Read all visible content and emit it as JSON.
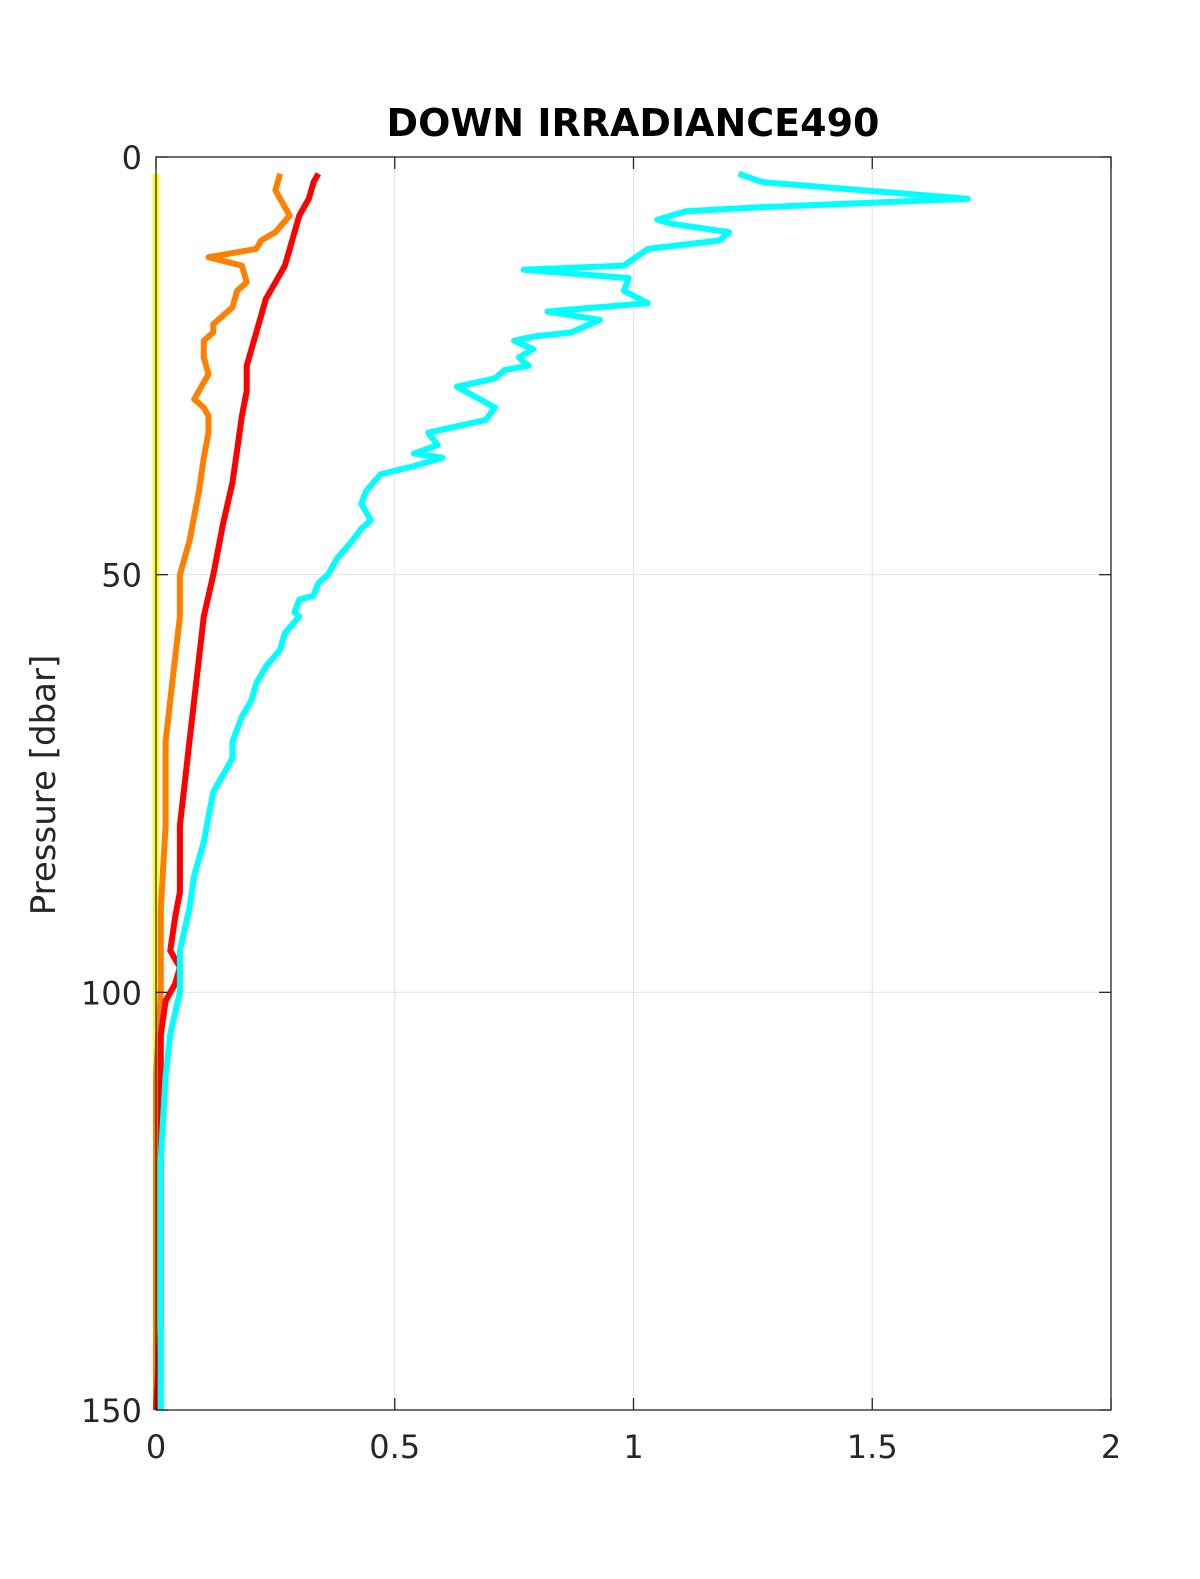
{
  "chart_data": {
    "type": "line",
    "title": "DOWN IRRADIANCE490",
    "xlabel": "",
    "ylabel": "Pressure [dbar]",
    "xlim": [
      0,
      2
    ],
    "ylim": [
      0,
      150
    ],
    "y_reversed": true,
    "grid": true,
    "x_ticks": [
      "0",
      "0.5",
      "1",
      "1.5",
      "2"
    ],
    "y_ticks": [
      "0",
      "50",
      "100",
      "150"
    ],
    "series": [
      {
        "color": "#ffff00",
        "points": [
          [
            0.0,
            2
          ],
          [
            0.0,
            50
          ],
          [
            0.0,
            100
          ],
          [
            0.0,
            150
          ]
        ]
      },
      {
        "color": "#ff8000",
        "points": [
          [
            0.26,
            2
          ],
          [
            0.25,
            4
          ],
          [
            0.27,
            6
          ],
          [
            0.28,
            7
          ],
          [
            0.25,
            9
          ],
          [
            0.22,
            10
          ],
          [
            0.21,
            11
          ],
          [
            0.11,
            12
          ],
          [
            0.18,
            13
          ],
          [
            0.19,
            15
          ],
          [
            0.17,
            16
          ],
          [
            0.16,
            18
          ],
          [
            0.12,
            20
          ],
          [
            0.12,
            21
          ],
          [
            0.1,
            22
          ],
          [
            0.1,
            24
          ],
          [
            0.11,
            26
          ],
          [
            0.08,
            29
          ],
          [
            0.1,
            30
          ],
          [
            0.11,
            31
          ],
          [
            0.11,
            33
          ],
          [
            0.1,
            36
          ],
          [
            0.09,
            40
          ],
          [
            0.08,
            43
          ],
          [
            0.07,
            46
          ],
          [
            0.05,
            50
          ],
          [
            0.05,
            52
          ],
          [
            0.05,
            55
          ],
          [
            0.04,
            60
          ],
          [
            0.03,
            65
          ],
          [
            0.02,
            70
          ],
          [
            0.02,
            80
          ],
          [
            0.01,
            90
          ],
          [
            0.01,
            100
          ],
          [
            0.0,
            110
          ],
          [
            0.0,
            130
          ],
          [
            0.0,
            150
          ]
        ]
      },
      {
        "color": "#ff0000",
        "points": [
          [
            0.34,
            2
          ],
          [
            0.33,
            3
          ],
          [
            0.32,
            5
          ],
          [
            0.3,
            7
          ],
          [
            0.29,
            9
          ],
          [
            0.28,
            11
          ],
          [
            0.27,
            13
          ],
          [
            0.25,
            15
          ],
          [
            0.23,
            17
          ],
          [
            0.22,
            19
          ],
          [
            0.21,
            21
          ],
          [
            0.2,
            23
          ],
          [
            0.19,
            25
          ],
          [
            0.19,
            28
          ],
          [
            0.18,
            31
          ],
          [
            0.17,
            35
          ],
          [
            0.16,
            39
          ],
          [
            0.14,
            44
          ],
          [
            0.12,
            50
          ],
          [
            0.1,
            55
          ],
          [
            0.09,
            60
          ],
          [
            0.08,
            65
          ],
          [
            0.07,
            70
          ],
          [
            0.06,
            75
          ],
          [
            0.05,
            80
          ],
          [
            0.05,
            85
          ],
          [
            0.05,
            88
          ],
          [
            0.04,
            91
          ],
          [
            0.03,
            95
          ],
          [
            0.05,
            97
          ],
          [
            0.04,
            99
          ],
          [
            0.02,
            101
          ],
          [
            0.01,
            105
          ],
          [
            0.01,
            110
          ],
          [
            0.01,
            120
          ],
          [
            0.01,
            130
          ],
          [
            0.01,
            140
          ],
          [
            0.0,
            150
          ]
        ]
      },
      {
        "color": "#00ffff",
        "points": [
          [
            1.22,
            2
          ],
          [
            1.27,
            3
          ],
          [
            1.7,
            5
          ],
          [
            1.27,
            6
          ],
          [
            1.11,
            6.5
          ],
          [
            1.05,
            7.5
          ],
          [
            1.08,
            8
          ],
          [
            1.2,
            9
          ],
          [
            1.18,
            10
          ],
          [
            1.03,
            11
          ],
          [
            0.98,
            13
          ],
          [
            0.77,
            13.5
          ],
          [
            0.99,
            14.5
          ],
          [
            0.98,
            16
          ],
          [
            1.03,
            17.5
          ],
          [
            0.82,
            18.5
          ],
          [
            0.93,
            19.5
          ],
          [
            0.87,
            21
          ],
          [
            0.79,
            21.5
          ],
          [
            0.75,
            22
          ],
          [
            0.79,
            23
          ],
          [
            0.76,
            24
          ],
          [
            0.78,
            25
          ],
          [
            0.73,
            25.5
          ],
          [
            0.71,
            26.5
          ],
          [
            0.63,
            27.5
          ],
          [
            0.71,
            30
          ],
          [
            0.69,
            31.5
          ],
          [
            0.57,
            33
          ],
          [
            0.59,
            34.5
          ],
          [
            0.54,
            35.5
          ],
          [
            0.6,
            36
          ],
          [
            0.54,
            37
          ],
          [
            0.47,
            38
          ],
          [
            0.44,
            40
          ],
          [
            0.43,
            41.5
          ],
          [
            0.45,
            43.5
          ],
          [
            0.43,
            44.5
          ],
          [
            0.41,
            46
          ],
          [
            0.38,
            48
          ],
          [
            0.36,
            50
          ],
          [
            0.34,
            51
          ],
          [
            0.33,
            52.5
          ],
          [
            0.3,
            53
          ],
          [
            0.29,
            54.5
          ],
          [
            0.3,
            55
          ],
          [
            0.27,
            57
          ],
          [
            0.26,
            59
          ],
          [
            0.23,
            61
          ],
          [
            0.21,
            63
          ],
          [
            0.2,
            65
          ],
          [
            0.18,
            67
          ],
          [
            0.16,
            70
          ],
          [
            0.16,
            72
          ],
          [
            0.14,
            74
          ],
          [
            0.12,
            76
          ],
          [
            0.11,
            79
          ],
          [
            0.1,
            82
          ],
          [
            0.08,
            86
          ],
          [
            0.07,
            90
          ],
          [
            0.05,
            95
          ],
          [
            0.05,
            100
          ],
          [
            0.03,
            105
          ],
          [
            0.02,
            110
          ],
          [
            0.01,
            120
          ],
          [
            0.01,
            130
          ],
          [
            0.01,
            140
          ],
          [
            0.01,
            150
          ]
        ]
      }
    ]
  }
}
